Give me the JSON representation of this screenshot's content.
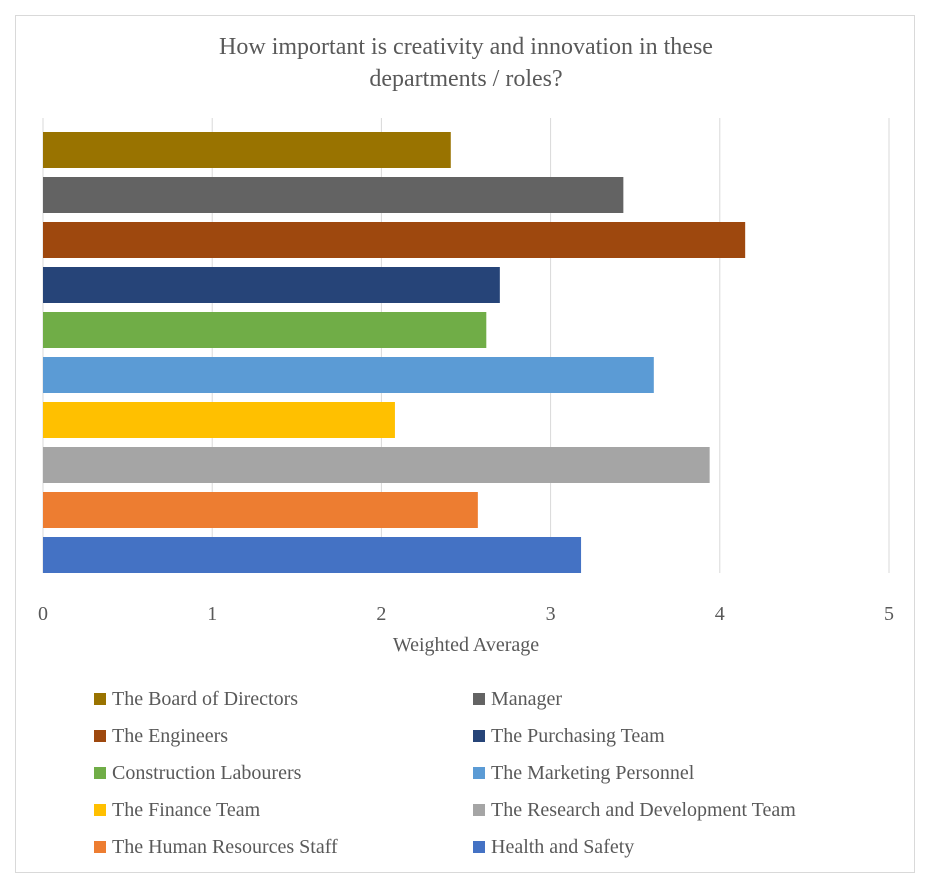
{
  "chart_data": {
    "type": "bar",
    "orientation": "horizontal",
    "title": "How important is creativity and innovation in these departments / roles?",
    "title_lines": [
      "How important is creativity and innovation in these",
      "departments / roles?"
    ],
    "xlabel": "Weighted Average",
    "ylabel": "",
    "xlim": [
      0,
      5
    ],
    "xticks": [
      "0",
      "1",
      "2",
      "3",
      "4",
      "5"
    ],
    "grid": true,
    "legend_position": "bottom",
    "series": [
      {
        "name": "The Board of Directors",
        "value": 2.41,
        "color": "#997300"
      },
      {
        "name": "Manager",
        "value": 3.43,
        "color": "#636363"
      },
      {
        "name": "The Engineers",
        "value": 4.15,
        "color": "#9E480E"
      },
      {
        "name": "The Purchasing Team",
        "value": 2.7,
        "color": "#264478"
      },
      {
        "name": "Construction Labourers",
        "value": 2.62,
        "color": "#70AD47"
      },
      {
        "name": "The Marketing Personnel",
        "value": 3.61,
        "color": "#5B9BD5"
      },
      {
        "name": "The Finance Team",
        "value": 2.08,
        "color": "#FFC000"
      },
      {
        "name": "The Research and Development Team",
        "value": 3.94,
        "color": "#A5A5A5"
      },
      {
        "name": "The Human Resources Staff",
        "value": 2.57,
        "color": "#ED7D31"
      },
      {
        "name": "Health and Safety",
        "value": 3.18,
        "color": "#4472C4"
      }
    ]
  }
}
